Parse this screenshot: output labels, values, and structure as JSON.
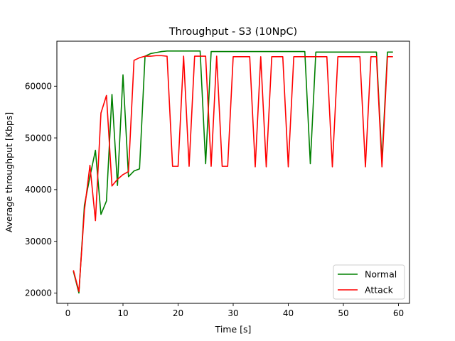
{
  "chart_data": {
    "type": "line",
    "title": "Throughput - S3 (10NpC)",
    "xlabel": "Time [s]",
    "ylabel": "Average throughput [Kbps]",
    "xlim": [
      -2,
      62
    ],
    "ylim": [
      18000,
      68700
    ],
    "xticks": [
      0,
      10,
      20,
      30,
      40,
      50,
      60
    ],
    "yticks": [
      20000,
      30000,
      40000,
      50000,
      60000
    ],
    "legend_position": "lower-right",
    "series": [
      {
        "name": "Normal",
        "color": "#008000",
        "x": [
          1,
          2,
          3,
          4,
          5,
          6,
          7,
          8,
          9,
          10,
          11,
          12,
          13,
          14,
          15,
          16,
          17,
          18,
          19,
          20,
          21,
          22,
          23,
          24,
          25,
          26,
          27,
          28,
          29,
          30,
          31,
          32,
          33,
          34,
          35,
          36,
          37,
          38,
          39,
          40,
          41,
          42,
          43,
          44,
          45,
          46,
          47,
          48,
          49,
          50,
          51,
          52,
          53,
          54,
          55,
          56,
          57,
          58,
          59
        ],
        "y": [
          24200,
          20000,
          37000,
          42500,
          47600,
          35200,
          37800,
          58400,
          40800,
          62200,
          42500,
          43600,
          44000,
          65800,
          66300,
          66500,
          66700,
          66800,
          66800,
          66800,
          66800,
          66800,
          66800,
          66800,
          45000,
          66700,
          66700,
          66700,
          66700,
          66700,
          66700,
          66700,
          66700,
          66700,
          66700,
          66700,
          66700,
          66700,
          66700,
          66700,
          66700,
          66700,
          66700,
          45000,
          66600,
          66600,
          66600,
          66600,
          66600,
          66600,
          66600,
          66600,
          66600,
          66600,
          66600,
          66600,
          45500,
          66600,
          66600
        ]
      },
      {
        "name": "Attack",
        "color": "#ff0000",
        "x": [
          1,
          2,
          3,
          4,
          5,
          6,
          7,
          8,
          9,
          10,
          11,
          12,
          13,
          14,
          15,
          16,
          17,
          18,
          19,
          20,
          21,
          22,
          23,
          24,
          25,
          26,
          27,
          28,
          29,
          30,
          31,
          32,
          33,
          34,
          35,
          36,
          37,
          38,
          39,
          40,
          41,
          42,
          43,
          44,
          45,
          46,
          47,
          48,
          49,
          50,
          51,
          52,
          53,
          54,
          55,
          56,
          57,
          58,
          59
        ],
        "y": [
          24400,
          20300,
          36000,
          44700,
          34000,
          54800,
          58200,
          40700,
          42000,
          42900,
          43500,
          65000,
          65500,
          65800,
          65800,
          65900,
          65900,
          65800,
          44500,
          44500,
          65800,
          44500,
          65800,
          65800,
          65800,
          44500,
          65800,
          44500,
          44500,
          65700,
          65700,
          65700,
          65700,
          44400,
          65700,
          44400,
          65700,
          65700,
          65700,
          44400,
          65700,
          65700,
          65700,
          65700,
          65700,
          65700,
          65700,
          44400,
          65700,
          65700,
          65700,
          65700,
          65700,
          44400,
          65700,
          65700,
          44400,
          65700,
          65700
        ]
      }
    ]
  }
}
